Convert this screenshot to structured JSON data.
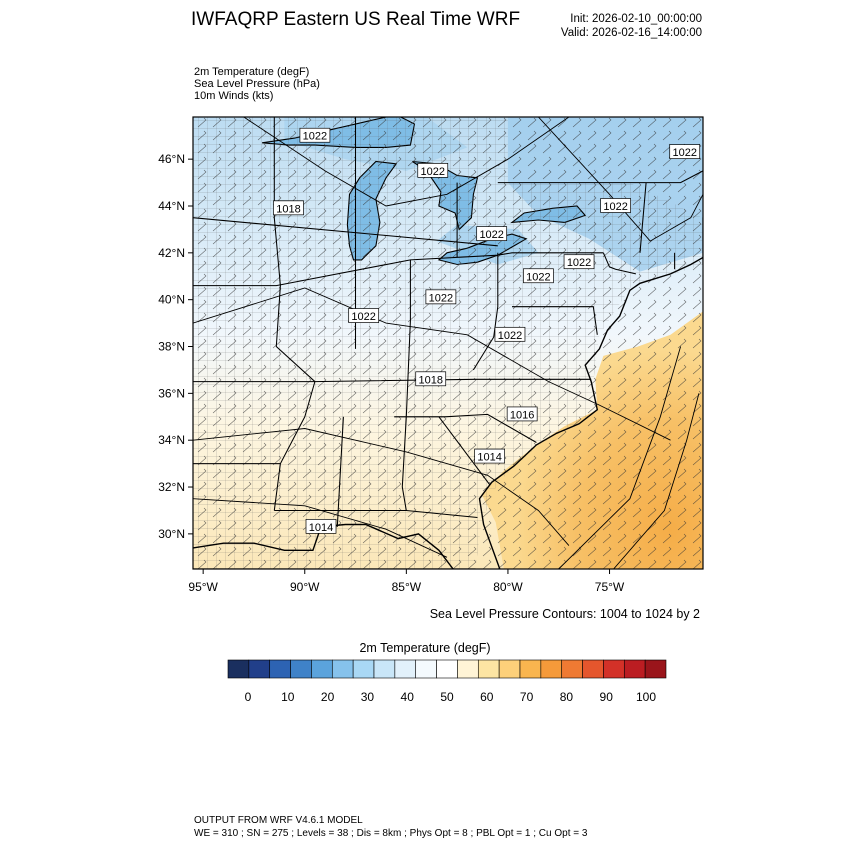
{
  "header": {
    "title": "IWFAQRP Eastern US Real Time WRF",
    "init": "Init: 2026-02-10_00:00:00",
    "valid": "Valid: 2026-02-16_14:00:00"
  },
  "fields": [
    "2m Temperature   (degF)",
    "Sea Level Pressure   (hPa)",
    "10m Winds   (kts)"
  ],
  "map": {
    "lat_labels": [
      "46°N",
      "44°N",
      "42°N",
      "40°N",
      "38°N",
      "36°N",
      "34°N",
      "32°N",
      "30°N"
    ],
    "lat_values": [
      46,
      44,
      42,
      40,
      38,
      36,
      34,
      32,
      30
    ],
    "lon_labels": [
      "95°W",
      "90°W",
      "85°W",
      "80°W",
      "75°W"
    ],
    "lon_values": [
      -95,
      -90,
      -85,
      -80,
      -75
    ],
    "lat_range": [
      28.5,
      47.8
    ],
    "lon_range": [
      -95.5,
      -70.4
    ],
    "pressure_labels": [
      {
        "text": "1022",
        "lon": -89.5,
        "lat": 47.0
      },
      {
        "text": "1022",
        "lon": -83.7,
        "lat": 45.5
      },
      {
        "text": "1022",
        "lon": -71.3,
        "lat": 46.3
      },
      {
        "text": "1018",
        "lon": -90.8,
        "lat": 43.9
      },
      {
        "text": "1022",
        "lon": -80.8,
        "lat": 42.8
      },
      {
        "text": "1022",
        "lon": -74.7,
        "lat": 44.0
      },
      {
        "text": "1022",
        "lon": -78.5,
        "lat": 41.0
      },
      {
        "text": "1022",
        "lon": -76.5,
        "lat": 41.6
      },
      {
        "text": "1022",
        "lon": -83.3,
        "lat": 40.1
      },
      {
        "text": "1022",
        "lon": -87.1,
        "lat": 39.3
      },
      {
        "text": "1022",
        "lon": -79.9,
        "lat": 38.5
      },
      {
        "text": "1018",
        "lon": -83.8,
        "lat": 36.6
      },
      {
        "text": "1016",
        "lon": -79.3,
        "lat": 35.1
      },
      {
        "text": "1014",
        "lon": -80.9,
        "lat": 33.3
      },
      {
        "text": "1014",
        "lon": -89.2,
        "lat": 30.3
      }
    ],
    "colors": {
      "frame": "#000000",
      "cold": "#bcdcf2",
      "cool": "#d8ecf8",
      "mild": "#f3f8fc",
      "warm": "#fbeec8",
      "hot": "#f4ba58",
      "label_bg": "#ffffff"
    }
  },
  "contour_note": "Sea Level Pressure Contours: 1004 to 1024 by 2",
  "colorbar": {
    "title": "2m Temperature  (degF)",
    "tick_labels": [
      "0",
      "10",
      "20",
      "30",
      "40",
      "50",
      "60",
      "70",
      "80",
      "90",
      "100"
    ],
    "bins": [
      "#1a2f5f",
      "#213f8a",
      "#2d63b3",
      "#3f82c8",
      "#5ba3dc",
      "#86c2ec",
      "#a9d8f5",
      "#c9e6f8",
      "#e2f1fb",
      "#f4fafe",
      "#ffffff",
      "#fff4d6",
      "#fde5a3",
      "#fdd07a",
      "#f9b54f",
      "#f59a3a",
      "#ef7a33",
      "#e5562d",
      "#d33128",
      "#bb1d22",
      "#9a151b"
    ]
  },
  "footer": {
    "line1": "OUTPUT FROM WRF V4.6.1 MODEL",
    "line2": "WE = 310 ; SN = 275 ; Levels = 38 ; Dis = 8km ; Phys Opt = 8 ; PBL Opt = 1 ; Cu Opt = 3"
  }
}
